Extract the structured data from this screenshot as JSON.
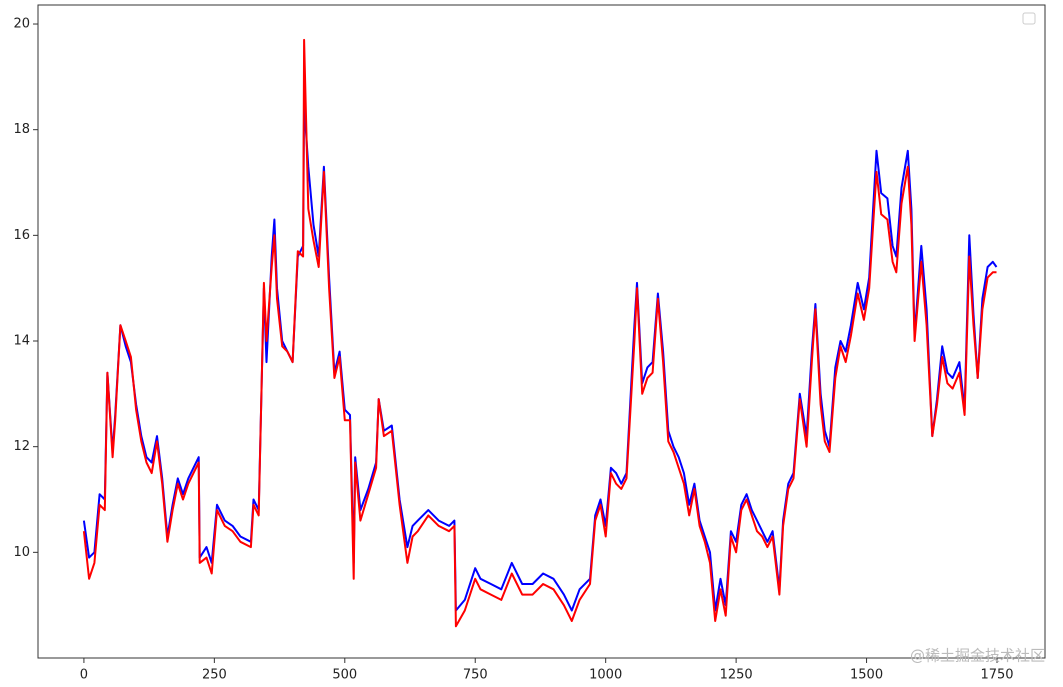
{
  "chart_data": {
    "type": "line",
    "x": [
      0,
      10,
      20,
      30,
      40,
      45,
      55,
      60,
      70,
      80,
      90,
      100,
      110,
      120,
      130,
      140,
      150,
      160,
      170,
      180,
      190,
      200,
      210,
      220,
      222,
      235,
      245,
      255,
      270,
      285,
      300,
      320,
      325,
      335,
      345,
      350,
      360,
      365,
      370,
      380,
      390,
      400,
      410,
      420,
      422,
      430,
      440,
      450,
      460,
      470,
      480,
      490,
      500,
      510,
      517,
      520,
      530,
      545,
      560,
      565,
      575,
      590,
      605,
      620,
      630,
      640,
      660,
      680,
      700,
      710,
      713,
      730,
      750,
      760,
      780,
      800,
      820,
      840,
      860,
      880,
      900,
      920,
      935,
      950,
      970,
      980,
      990,
      1000,
      1010,
      1020,
      1030,
      1040,
      1055,
      1060,
      1070,
      1080,
      1090,
      1100,
      1110,
      1120,
      1130,
      1140,
      1150,
      1160,
      1170,
      1180,
      1190,
      1200,
      1210,
      1220,
      1230,
      1240,
      1250,
      1260,
      1270,
      1280,
      1290,
      1300,
      1310,
      1320,
      1333,
      1340,
      1350,
      1360,
      1372,
      1385,
      1395,
      1402,
      1412,
      1420,
      1429,
      1440,
      1450,
      1460,
      1470,
      1483,
      1495,
      1505,
      1512,
      1519,
      1528,
      1540,
      1550,
      1557,
      1567,
      1579,
      1586,
      1592,
      1605,
      1615,
      1626,
      1635,
      1645,
      1655,
      1665,
      1678,
      1688,
      1697,
      1705,
      1713,
      1722,
      1732,
      1742,
      1749
    ],
    "series": [
      {
        "color": "#0000ff",
        "values": [
          10.6,
          9.9,
          10.0,
          11.1,
          11.0,
          13.4,
          11.9,
          12.6,
          14.3,
          13.9,
          13.6,
          12.8,
          12.2,
          11.8,
          11.7,
          12.2,
          11.4,
          10.3,
          10.9,
          11.4,
          11.1,
          11.4,
          11.6,
          11.8,
          9.9,
          10.1,
          9.8,
          10.9,
          10.6,
          10.5,
          10.3,
          10.2,
          11.0,
          10.8,
          15.0,
          13.6,
          15.6,
          16.3,
          15.0,
          14.0,
          13.8,
          13.6,
          15.6,
          15.8,
          18.5,
          17.3,
          16.2,
          15.6,
          17.3,
          15.2,
          13.4,
          13.8,
          12.7,
          12.6,
          9.8,
          11.8,
          10.8,
          11.2,
          11.7,
          12.9,
          12.3,
          12.4,
          11.0,
          10.1,
          10.5,
          10.6,
          10.8,
          10.6,
          10.5,
          10.6,
          8.9,
          9.1,
          9.7,
          9.5,
          9.4,
          9.3,
          9.8,
          9.4,
          9.4,
          9.6,
          9.5,
          9.2,
          8.9,
          9.3,
          9.5,
          10.7,
          11.0,
          10.5,
          11.6,
          11.5,
          11.3,
          11.5,
          14.3,
          15.1,
          13.2,
          13.5,
          13.6,
          14.9,
          13.8,
          12.3,
          12.0,
          11.8,
          11.5,
          10.9,
          11.3,
          10.6,
          10.3,
          10.0,
          8.9,
          9.5,
          9.0,
          10.4,
          10.2,
          10.9,
          11.1,
          10.8,
          10.6,
          10.4,
          10.2,
          10.4,
          9.3,
          10.6,
          11.3,
          11.5,
          13.0,
          12.2,
          13.8,
          14.7,
          13.0,
          12.3,
          12.0,
          13.5,
          14.0,
          13.8,
          14.3,
          15.1,
          14.6,
          15.2,
          16.4,
          17.6,
          16.8,
          16.7,
          15.8,
          15.6,
          16.9,
          17.6,
          16.5,
          14.1,
          15.8,
          14.6,
          12.2,
          12.9,
          13.9,
          13.4,
          13.3,
          13.6,
          12.7,
          16.0,
          14.5,
          13.3,
          14.8,
          15.4,
          15.5,
          15.4
        ]
      },
      {
        "color": "#ff0000",
        "values": [
          10.4,
          9.5,
          9.8,
          10.9,
          10.8,
          13.4,
          11.8,
          12.5,
          14.3,
          14.0,
          13.7,
          12.7,
          12.1,
          11.7,
          11.5,
          12.1,
          11.3,
          10.2,
          10.8,
          11.3,
          11.0,
          11.3,
          11.5,
          11.7,
          9.8,
          9.9,
          9.6,
          10.8,
          10.5,
          10.4,
          10.2,
          10.1,
          10.9,
          10.7,
          15.1,
          14.0,
          15.4,
          16.0,
          14.8,
          13.9,
          13.8,
          13.6,
          15.7,
          15.6,
          19.7,
          16.5,
          15.9,
          15.4,
          17.2,
          15.0,
          13.3,
          13.7,
          12.5,
          12.5,
          9.5,
          11.7,
          10.6,
          11.1,
          11.6,
          12.9,
          12.2,
          12.3,
          10.9,
          9.8,
          10.3,
          10.4,
          10.7,
          10.5,
          10.4,
          10.5,
          8.6,
          8.9,
          9.5,
          9.3,
          9.2,
          9.1,
          9.6,
          9.2,
          9.2,
          9.4,
          9.3,
          9.0,
          8.7,
          9.1,
          9.4,
          10.6,
          10.9,
          10.3,
          11.5,
          11.3,
          11.2,
          11.4,
          14.0,
          15.0,
          13.0,
          13.3,
          13.4,
          14.8,
          13.6,
          12.1,
          11.9,
          11.6,
          11.3,
          10.7,
          11.2,
          10.5,
          10.2,
          9.8,
          8.7,
          9.3,
          8.8,
          10.3,
          10.0,
          10.8,
          11.0,
          10.7,
          10.4,
          10.3,
          10.1,
          10.3,
          9.2,
          10.5,
          11.2,
          11.4,
          12.9,
          12.0,
          13.6,
          14.6,
          12.8,
          12.1,
          11.9,
          13.3,
          13.9,
          13.6,
          14.1,
          14.9,
          14.4,
          15.0,
          16.1,
          17.2,
          16.4,
          16.3,
          15.5,
          15.3,
          16.6,
          17.3,
          16.2,
          14.0,
          15.5,
          14.3,
          12.2,
          12.8,
          13.7,
          13.2,
          13.1,
          13.4,
          12.6,
          15.6,
          14.3,
          13.3,
          14.6,
          15.2,
          15.3,
          15.3
        ]
      }
    ],
    "xlim": [
      -88,
      1842
    ],
    "ylim": [
      8.0,
      20.36
    ],
    "xticks": [
      0,
      250,
      500,
      750,
      1000,
      1250,
      1500,
      1750
    ],
    "yticks": [
      10,
      12,
      14,
      16,
      18,
      20
    ],
    "watermark": "@稀土掘金技术社区"
  }
}
